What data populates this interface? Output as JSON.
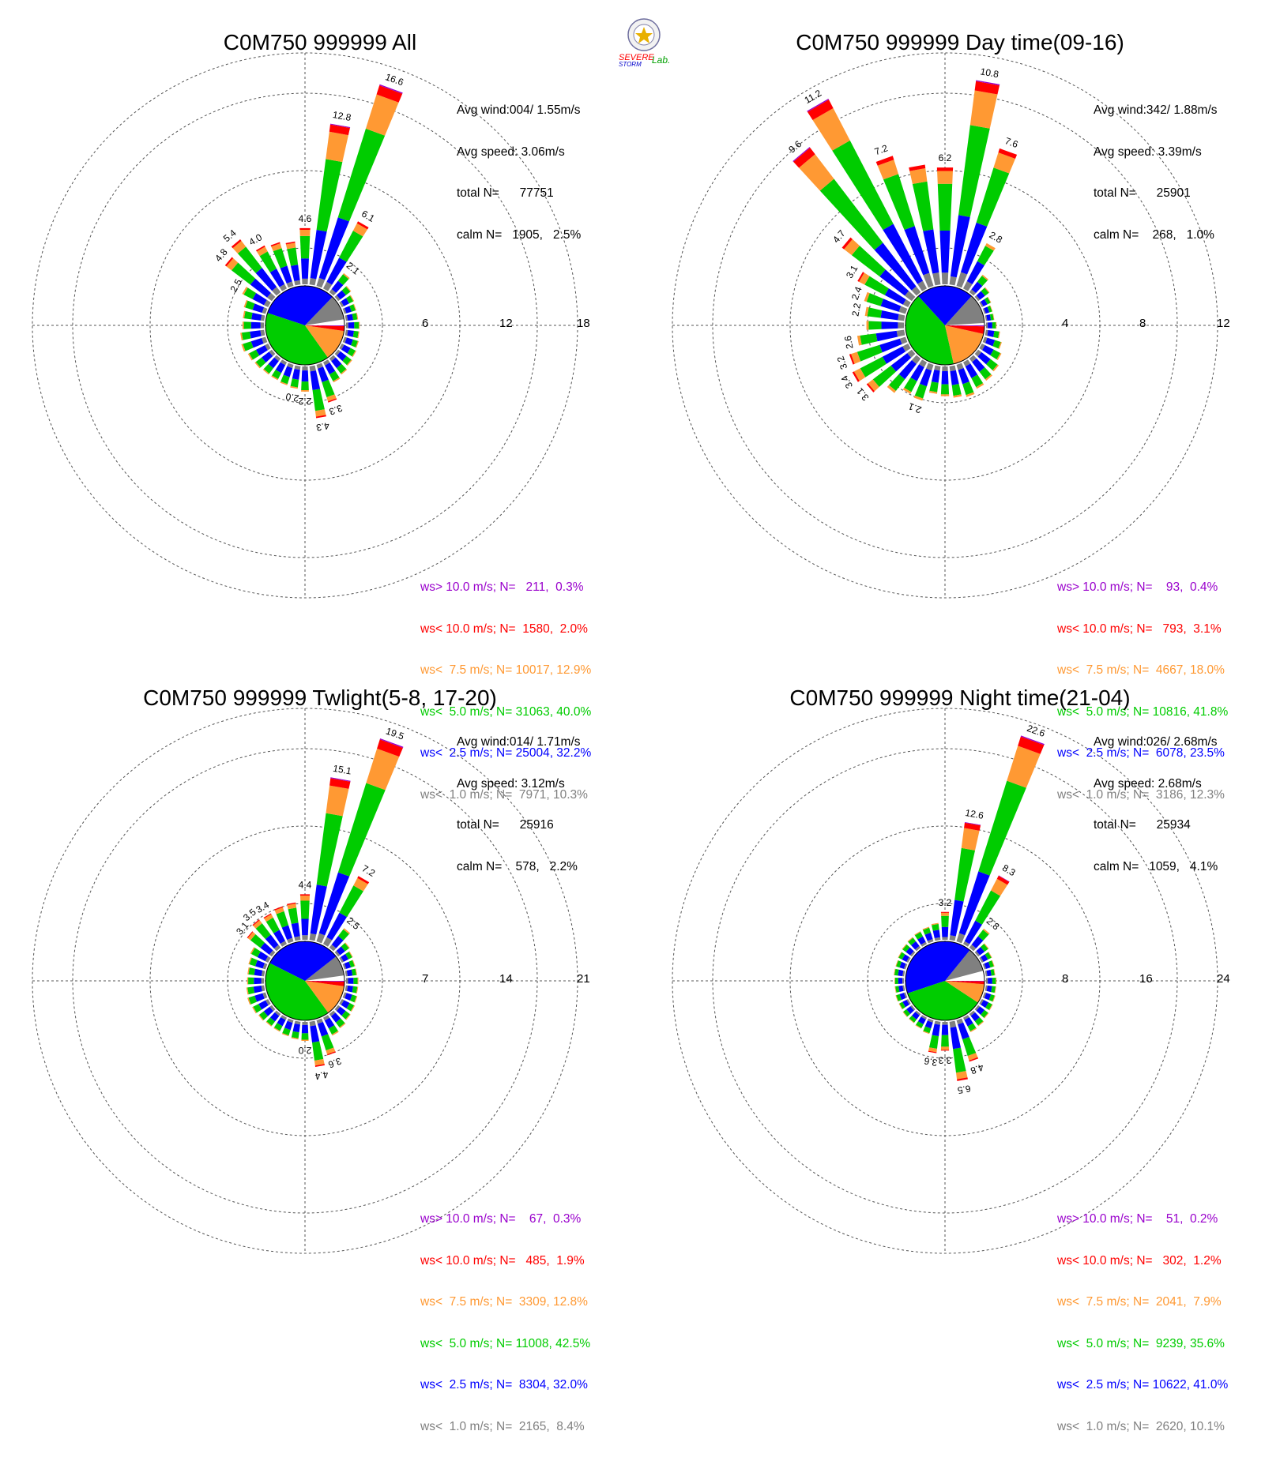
{
  "colors": {
    "gt10": "#9900cc",
    "lt10": "#ff0000",
    "lt75": "#ff9933",
    "lt5": "#00cc00",
    "lt25": "#0000ff",
    "lt1": "#808080",
    "calm": "#ffffff",
    "grid": "#555555"
  },
  "logo": {
    "text_a": "SEVERE",
    "text_b": "STORM",
    "text_c": "Lab."
  },
  "chart_data": [
    {
      "type": "windrose",
      "title": "C0M750 999999 All",
      "info": [
        "Avg wind:004/ 1.55m/s",
        "Avg speed: 3.06m/s",
        "total N=      77751",
        "calm N=   1905,   2.5%"
      ],
      "rings": [
        "6",
        "12",
        "18"
      ],
      "rmax": 18,
      "pie": [
        2.5,
        10.3,
        32.2,
        40.0,
        12.9,
        2.0,
        0.3
      ],
      "directions": [
        0,
        10,
        20,
        30,
        40,
        50,
        60,
        70,
        80,
        90,
        100,
        110,
        120,
        130,
        140,
        150,
        160,
        170,
        180,
        190,
        200,
        210,
        220,
        230,
        240,
        250,
        260,
        270,
        280,
        290,
        300,
        310,
        320,
        330,
        340,
        350
      ],
      "totals": [
        4.6,
        12.8,
        16.6,
        6.1,
        2.1,
        1.5,
        1.3,
        1.2,
        1.2,
        1.3,
        1.3,
        1.4,
        1.5,
        1.6,
        1.8,
        2.0,
        3.3,
        4.3,
        2.2,
        2.0,
        1.9,
        1.8,
        1.8,
        1.9,
        2.0,
        2.2,
        2.1,
        1.9,
        1.9,
        2.0,
        2.5,
        4.8,
        5.4,
        4.0,
        3.8,
        3.6
      ],
      "direction_labels": [
        {
          "dir": 0,
          "text": "4.6"
        },
        {
          "dir": 10,
          "text": "12.8"
        },
        {
          "dir": 20,
          "text": "16.6"
        },
        {
          "dir": 30,
          "text": "6.1"
        },
        {
          "dir": 40,
          "text": "2.1"
        },
        {
          "dir": 160,
          "text": "3.3"
        },
        {
          "dir": 170,
          "text": "4.3"
        },
        {
          "dir": 180,
          "text": "2.2"
        },
        {
          "dir": 190,
          "text": "2.0"
        },
        {
          "dir": 300,
          "text": "2.5"
        },
        {
          "dir": 310,
          "text": "4.8"
        },
        {
          "dir": 320,
          "text": "5.4"
        },
        {
          "dir": 330,
          "text": "4.0"
        }
      ],
      "legend": [
        {
          "text": "ws> 10.0 m/s; N=   211,  0.3%",
          "color": "#9900cc"
        },
        {
          "text": "ws< 10.0 m/s; N=  1580,  2.0%",
          "color": "#ff0000"
        },
        {
          "text": "ws<  7.5 m/s; N= 10017, 12.9%",
          "color": "#ff9933"
        },
        {
          "text": "ws<  5.0 m/s; N= 31063, 40.0%",
          "color": "#00cc00"
        },
        {
          "text": "ws<  2.5 m/s; N= 25004, 32.2%",
          "color": "#0000ff"
        },
        {
          "text": "ws<  1.0 m/s; N=  7971, 10.3%",
          "color": "#808080"
        }
      ]
    },
    {
      "type": "windrose",
      "title": "C0M750 999999 Day time(09-16)",
      "info": [
        "Avg wind:342/ 1.88m/s",
        "Avg speed: 3.39m/s",
        "total N=      25901",
        "calm N=    268,   1.0%"
      ],
      "rings": [
        "4",
        "8",
        "12"
      ],
      "rmax": 12,
      "pie": [
        1.0,
        12.3,
        23.5,
        41.8,
        18.0,
        3.1,
        0.4
      ],
      "directions": [
        0,
        10,
        20,
        30,
        40,
        50,
        60,
        70,
        80,
        90,
        100,
        110,
        120,
        130,
        140,
        150,
        160,
        170,
        180,
        190,
        200,
        210,
        220,
        230,
        240,
        250,
        260,
        270,
        280,
        290,
        300,
        310,
        320,
        330,
        340,
        350
      ],
      "totals": [
        6.2,
        10.8,
        7.6,
        2.8,
        1.3,
        0.9,
        0.7,
        0.6,
        0.6,
        0.7,
        0.9,
        1.1,
        1.3,
        1.5,
        1.6,
        1.7,
        1.9,
        1.8,
        1.7,
        1.6,
        2.1,
        2.0,
        2.4,
        3.1,
        3.4,
        3.2,
        2.6,
        2.1,
        2.2,
        2.4,
        3.1,
        4.7,
        9.6,
        11.2,
        7.2,
        6.4
      ],
      "direction_labels": [
        {
          "dir": 0,
          "text": "6.2"
        },
        {
          "dir": 10,
          "text": "10.8"
        },
        {
          "dir": 20,
          "text": "7.6"
        },
        {
          "dir": 30,
          "text": "2.8"
        },
        {
          "dir": 200,
          "text": "2.1"
        },
        {
          "dir": 230,
          "text": "3.1"
        },
        {
          "dir": 240,
          "text": "3.4"
        },
        {
          "dir": 250,
          "text": "3.2"
        },
        {
          "dir": 260,
          "text": "2.6"
        },
        {
          "dir": 280,
          "text": "2.2"
        },
        {
          "dir": 290,
          "text": "2.4"
        },
        {
          "dir": 300,
          "text": "3.1"
        },
        {
          "dir": 310,
          "text": "4.7"
        },
        {
          "dir": 320,
          "text": "9.6"
        },
        {
          "dir": 330,
          "text": "11.2"
        },
        {
          "dir": 340,
          "text": "7.2"
        }
      ],
      "legend": [
        {
          "text": "ws> 10.0 m/s; N=    93,  0.4%",
          "color": "#9900cc"
        },
        {
          "text": "ws< 10.0 m/s; N=   793,  3.1%",
          "color": "#ff0000"
        },
        {
          "text": "ws<  7.5 m/s; N=  4667, 18.0%",
          "color": "#ff9933"
        },
        {
          "text": "ws<  5.0 m/s; N= 10816, 41.8%",
          "color": "#00cc00"
        },
        {
          "text": "ws<  2.5 m/s; N=  6078, 23.5%",
          "color": "#0000ff"
        },
        {
          "text": "ws<  1.0 m/s; N=  3186, 12.3%",
          "color": "#808080"
        }
      ]
    },
    {
      "type": "windrose",
      "title": "C0M750 999999 Twlight(5-8, 17-20)",
      "info": [
        "Avg wind:014/ 1.71m/s",
        "Avg speed: 3.12m/s",
        "total N=      25916",
        "calm N=    578,   2.2%"
      ],
      "rings": [
        "7",
        "14",
        "21"
      ],
      "rmax": 21,
      "pie": [
        2.2,
        8.4,
        32.0,
        42.5,
        12.8,
        1.9,
        0.3
      ],
      "directions": [
        0,
        10,
        20,
        30,
        40,
        50,
        60,
        70,
        80,
        90,
        100,
        110,
        120,
        130,
        140,
        150,
        160,
        170,
        180,
        190,
        200,
        210,
        220,
        230,
        240,
        250,
        260,
        270,
        280,
        290,
        300,
        310,
        320,
        330,
        340,
        350
      ],
      "totals": [
        4.4,
        15.1,
        19.5,
        7.2,
        2.5,
        1.6,
        1.4,
        1.3,
        1.3,
        1.4,
        1.4,
        1.5,
        1.6,
        1.7,
        1.9,
        2.1,
        3.6,
        4.4,
        2.0,
        1.9,
        1.8,
        1.7,
        1.7,
        1.8,
        1.9,
        2.0,
        1.9,
        1.8,
        1.8,
        1.9,
        2.1,
        3.1,
        3.5,
        3.4,
        3.6,
        3.7
      ],
      "direction_labels": [
        {
          "dir": 0,
          "text": "4.4"
        },
        {
          "dir": 10,
          "text": "15.1"
        },
        {
          "dir": 20,
          "text": "19.5"
        },
        {
          "dir": 30,
          "text": "7.2"
        },
        {
          "dir": 40,
          "text": "2.5"
        },
        {
          "dir": 160,
          "text": "3.6"
        },
        {
          "dir": 170,
          "text": "4.4"
        },
        {
          "dir": 180,
          "text": "2.0"
        },
        {
          "dir": 310,
          "text": "3.1"
        },
        {
          "dir": 320,
          "text": "3.5"
        },
        {
          "dir": 330,
          "text": "3.4"
        }
      ],
      "legend": [
        {
          "text": "ws> 10.0 m/s; N=    67,  0.3%",
          "color": "#9900cc"
        },
        {
          "text": "ws< 10.0 m/s; N=   485,  1.9%",
          "color": "#ff0000"
        },
        {
          "text": "ws<  7.5 m/s; N=  3309, 12.8%",
          "color": "#ff9933"
        },
        {
          "text": "ws<  5.0 m/s; N= 11008, 42.5%",
          "color": "#00cc00"
        },
        {
          "text": "ws<  2.5 m/s; N=  8304, 32.0%",
          "color": "#0000ff"
        },
        {
          "text": "ws<  1.0 m/s; N=  2165,  8.4%",
          "color": "#808080"
        }
      ]
    },
    {
      "type": "windrose",
      "title": "C0M750 999999 Night time(21-04)",
      "info": [
        "Avg wind:026/ 2.68m/s",
        "Avg speed: 2.68m/s",
        "total N=      25934",
        "calm N=   1059,   4.1%"
      ],
      "rings": [
        "8",
        "16",
        "24"
      ],
      "rmax": 24,
      "pie": [
        4.1,
        10.1,
        41.0,
        35.6,
        7.9,
        1.2,
        0.2
      ],
      "directions": [
        0,
        10,
        20,
        30,
        40,
        50,
        60,
        70,
        80,
        90,
        100,
        110,
        120,
        130,
        140,
        150,
        160,
        170,
        180,
        190,
        200,
        210,
        220,
        230,
        240,
        250,
        260,
        270,
        280,
        290,
        300,
        310,
        320,
        330,
        340,
        350
      ],
      "totals": [
        3.2,
        12.6,
        22.6,
        8.3,
        2.8,
        1.7,
        1.5,
        1.4,
        1.3,
        1.4,
        1.4,
        1.5,
        1.6,
        1.7,
        1.9,
        2.0,
        4.8,
        6.5,
        3.3,
        3.6,
        1.8,
        1.6,
        1.5,
        1.5,
        1.4,
        1.4,
        1.3,
        1.3,
        1.4,
        1.4,
        1.5,
        1.6,
        1.7,
        1.8,
        1.9,
        2.1
      ],
      "direction_labels": [
        {
          "dir": 0,
          "text": "3.2"
        },
        {
          "dir": 10,
          "text": "12.6"
        },
        {
          "dir": 20,
          "text": "22.6"
        },
        {
          "dir": 30,
          "text": "8.3"
        },
        {
          "dir": 40,
          "text": "2.8"
        },
        {
          "dir": 160,
          "text": "4.8"
        },
        {
          "dir": 170,
          "text": "6.5"
        },
        {
          "dir": 180,
          "text": "3.3"
        },
        {
          "dir": 190,
          "text": "3.6"
        }
      ],
      "legend": [
        {
          "text": "ws> 10.0 m/s; N=    51,  0.2%",
          "color": "#9900cc"
        },
        {
          "text": "ws< 10.0 m/s; N=   302,  1.2%",
          "color": "#ff0000"
        },
        {
          "text": "ws<  7.5 m/s; N=  2041,  7.9%",
          "color": "#ff9933"
        },
        {
          "text": "ws<  5.0 m/s; N=  9239, 35.6%",
          "color": "#00cc00"
        },
        {
          "text": "ws<  2.5 m/s; N= 10622, 41.0%",
          "color": "#0000ff"
        },
        {
          "text": "ws<  1.0 m/s; N=  2620, 10.1%",
          "color": "#808080"
        }
      ]
    }
  ]
}
